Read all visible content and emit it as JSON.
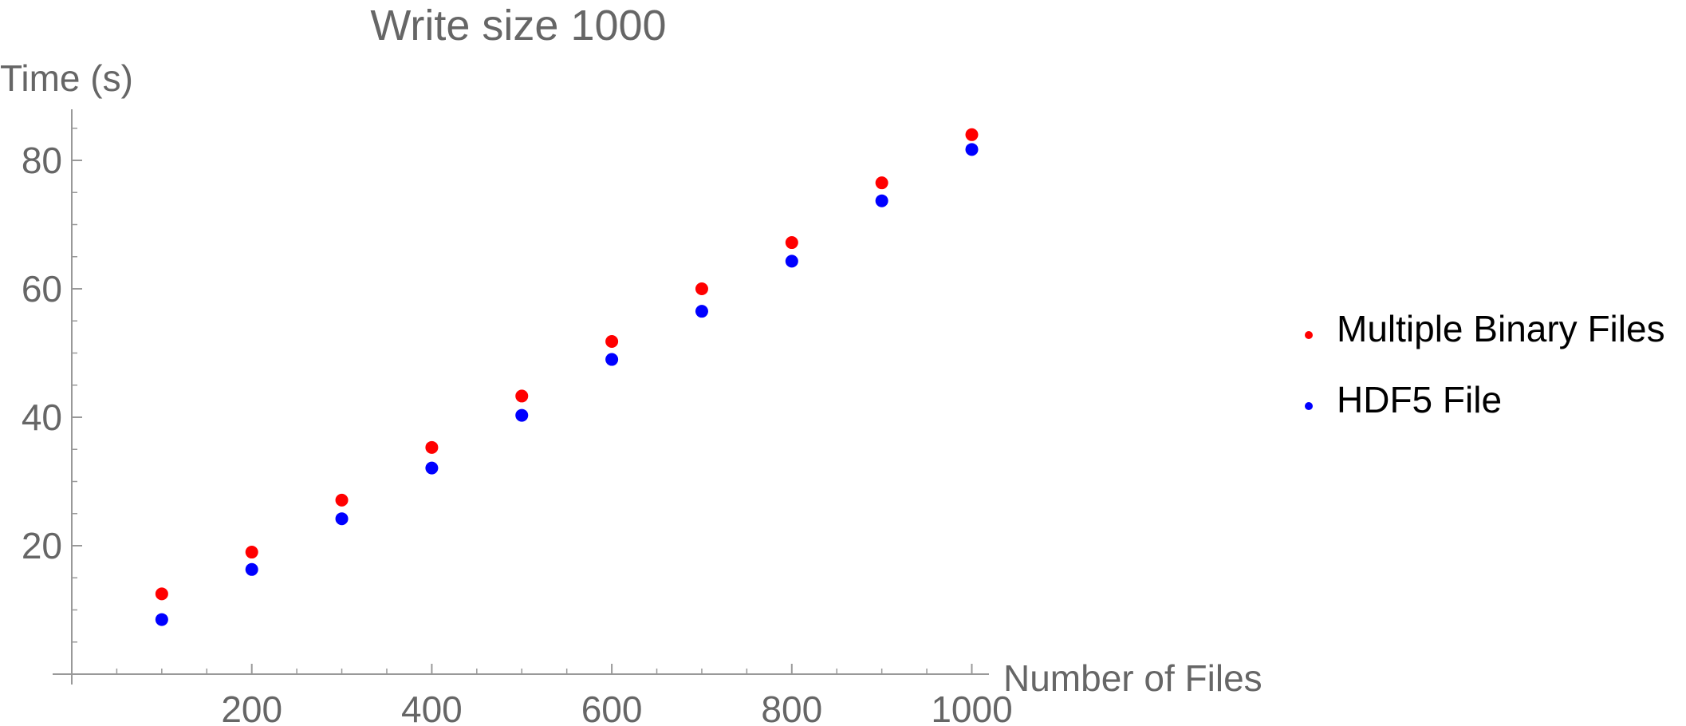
{
  "chart_data": {
    "type": "scatter",
    "title": "Write size 1000",
    "xlabel": "Number of Files",
    "ylabel": "Time (s)",
    "xlim": [
      0,
      1020
    ],
    "ylim": [
      0,
      88
    ],
    "xticks": [
      200,
      400,
      600,
      800,
      1000
    ],
    "yticks": [
      20,
      40,
      60,
      80
    ],
    "x": [
      100,
      200,
      300,
      400,
      500,
      600,
      700,
      800,
      900,
      1000
    ],
    "series": [
      {
        "name": "Multiple Binary Files",
        "color": "#ff0000",
        "values": [
          12.5,
          19.0,
          27.1,
          35.3,
          43.3,
          51.8,
          60.0,
          67.2,
          76.5,
          84.0
        ]
      },
      {
        "name": "HDF5 File",
        "color": "#0000ff",
        "values": [
          8.5,
          16.3,
          24.2,
          32.1,
          40.3,
          49.0,
          56.5,
          64.3,
          73.7,
          81.7
        ]
      }
    ],
    "grid": false,
    "legend_position": "right"
  }
}
